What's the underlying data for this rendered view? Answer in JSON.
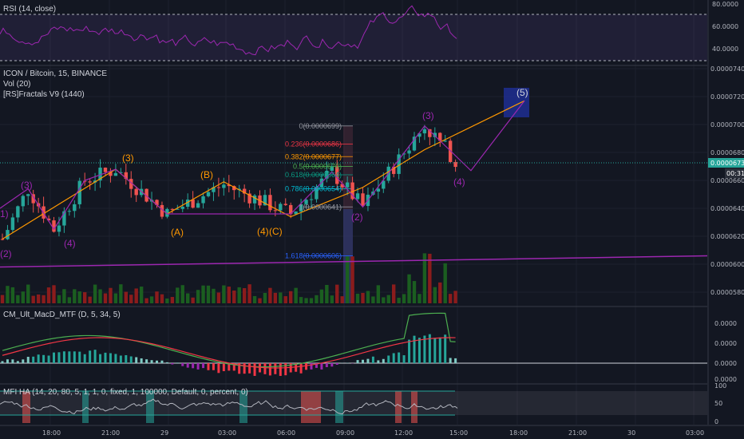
{
  "panes": {
    "rsi": {
      "title": "RSI (14, close)",
      "ticks": [
        "80.0000",
        "60.0000",
        "40.0000"
      ]
    },
    "price": {
      "title": "ICON / Bitcoin, 15, BINANCE",
      "vol_label": "Vol (20)",
      "fractals_label": "[RS]Fractals V9 (1440)",
      "ticks": [
        "0.0000740",
        "0.0000720",
        "0.0000700",
        "0.0000680",
        "0.0000660",
        "0.0000640",
        "0.0000620",
        "0.0000600",
        "0.0000580"
      ],
      "last_price": "0.0000673",
      "countdown": "00:31"
    },
    "macd": {
      "title": "CM_Ult_MacD_MTF (D, 5, 34, 5)",
      "ticks": [
        "0.0000",
        "0.0000",
        "0.0000",
        "0.0000"
      ]
    },
    "mfi": {
      "title": "MFI HA (14, 20, 80, 5, 1, 1, 0, fixed, 1, 100000, Default, 0, percent, 0)",
      "ticks": [
        "100",
        "50",
        "0"
      ]
    }
  },
  "time_axis": [
    "18:00",
    "21:00",
    "29",
    "03:00",
    "06:00",
    "09:00",
    "12:00",
    "15:00",
    "18:00",
    "21:00",
    "30",
    "03:00"
  ],
  "fib_levels": [
    {
      "label": "0(0.0000699)",
      "color": "#9598a1"
    },
    {
      "label": "0.236(0.0000686)",
      "color": "#f23645"
    },
    {
      "label": "0.382(0.0000677)",
      "color": "#ff9800"
    },
    {
      "label": "0.5(0.0000670)",
      "color": "#4caf50"
    },
    {
      "label": "0.618(0.0000664)",
      "color": "#089981"
    },
    {
      "label": "0.786(0.0000654)",
      "color": "#00bcd4"
    },
    {
      "label": "1(0.0000641)",
      "color": "#9598a1"
    },
    {
      "label": "1.618(0.0000606)",
      "color": "#2962ff"
    }
  ],
  "wave_labels": [
    "1)",
    "(2)",
    "(3)",
    "(4)",
    "(3)",
    "(A)",
    "(B)",
    "(4)",
    "(C)",
    "(2)",
    "(3)",
    "(4)",
    "(5)"
  ],
  "chart_data": {
    "type": "candlestick",
    "symbol": "ICON / Bitcoin, 15, BINANCE",
    "x_range": [
      "16:00",
      "03:00"
    ],
    "ylim": [
      5.8e-05,
      7.45e-05
    ],
    "last_price": 6.73e-05,
    "candles_summary": [
      {
        "time": "16:00",
        "price": 6.18e-05
      },
      {
        "time": "17:15",
        "price": 6.54e-05
      },
      {
        "time": "18:30",
        "price": 6.25e-05
      },
      {
        "time": "20:00",
        "price": 6.6e-05
      },
      {
        "time": "21:30",
        "price": 6.68e-05
      },
      {
        "time": "00:00",
        "price": 6.36e-05
      },
      {
        "time": "02:45",
        "price": 6.57e-05
      },
      {
        "time": "06:00",
        "price": 6.36e-05
      },
      {
        "time": "08:00",
        "price": 6.66e-05
      },
      {
        "time": "09:30",
        "price": 6.41e-05
      },
      {
        "time": "12:30",
        "price": 6.99e-05
      },
      {
        "time": "14:30",
        "price": 6.67e-05
      },
      {
        "time": "15:00",
        "price": 6.73e-05
      }
    ],
    "projection": {
      "wave": "(5)",
      "price": 7.17e-05
    },
    "support_line": {
      "from": 5.98e-05,
      "to": 6.06e-05
    },
    "rsi": {
      "ylim": [
        30,
        85
      ],
      "levels": [
        70,
        30
      ]
    },
    "mfi": {
      "ylim": [
        0,
        100
      ],
      "levels": [
        80,
        20
      ]
    }
  }
}
